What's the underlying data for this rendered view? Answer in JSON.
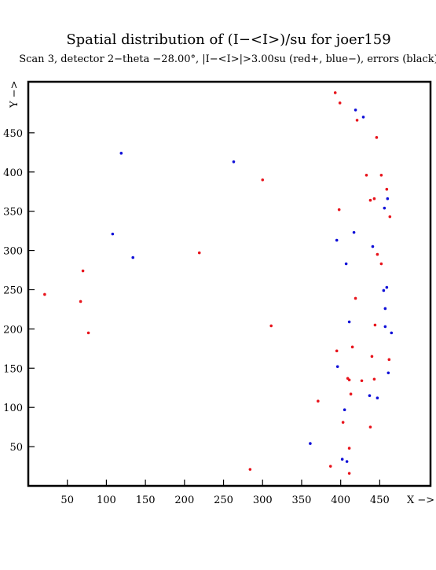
{
  "chart_data": {
    "type": "scatter",
    "title": "Spatial distribution of (I−<I>)/su for joer159",
    "subtitle": "Scan  3, detector 2−theta −28.00°, |I−<I>|>3.00su (red+, blue−), errors (black)",
    "xlabel": "X −>",
    "ylabel": "Y −>",
    "xlim": [
      0,
      515
    ],
    "ylim": [
      0,
      515
    ],
    "x_ticks": [
      50,
      100,
      150,
      200,
      250,
      300,
      350,
      400,
      450
    ],
    "y_ticks": [
      50,
      100,
      150,
      200,
      250,
      300,
      350,
      400,
      450
    ],
    "grid": false,
    "colors": {
      "positive": "#e8141c",
      "negative": "#1010d8",
      "frame": "#000000"
    },
    "series": [
      {
        "name": "red+",
        "color": "#e8141c",
        "points": [
          [
            393,
            501
          ],
          [
            399,
            488
          ],
          [
            421,
            466
          ],
          [
            446,
            444
          ],
          [
            433,
            396
          ],
          [
            452,
            396
          ],
          [
            300,
            390
          ],
          [
            459,
            378
          ],
          [
            438,
            364
          ],
          [
            443,
            366
          ],
          [
            398,
            352
          ],
          [
            463,
            343
          ],
          [
            219,
            297
          ],
          [
            447,
            295
          ],
          [
            452,
            283
          ],
          [
            70,
            274
          ],
          [
            21,
            244
          ],
          [
            419,
            239
          ],
          [
            67,
            235
          ],
          [
            311,
            204
          ],
          [
            444,
            205
          ],
          [
            77,
            195
          ],
          [
            415,
            177
          ],
          [
            395,
            172
          ],
          [
            440,
            165
          ],
          [
            462,
            161
          ],
          [
            409,
            137
          ],
          [
            411,
            135
          ],
          [
            427,
            134
          ],
          [
            443,
            136
          ],
          [
            413,
            117
          ],
          [
            371,
            108
          ],
          [
            403,
            81
          ],
          [
            438,
            75
          ],
          [
            411,
            48
          ],
          [
            387,
            25
          ],
          [
            284,
            21
          ],
          [
            411,
            16
          ]
        ]
      },
      {
        "name": "blue−",
        "color": "#1010d8",
        "points": [
          [
            419,
            479
          ],
          [
            429,
            470
          ],
          [
            119,
            424
          ],
          [
            263,
            413
          ],
          [
            460,
            366
          ],
          [
            456,
            354
          ],
          [
            108,
            321
          ],
          [
            417,
            323
          ],
          [
            395,
            313
          ],
          [
            441,
            305
          ],
          [
            134,
            291
          ],
          [
            407,
            283
          ],
          [
            459,
            253
          ],
          [
            455,
            249
          ],
          [
            457,
            226
          ],
          [
            411,
            209
          ],
          [
            457,
            203
          ],
          [
            465,
            195
          ],
          [
            396,
            152
          ],
          [
            461,
            144
          ],
          [
            437,
            115
          ],
          [
            447,
            112
          ],
          [
            405,
            97
          ],
          [
            361,
            54
          ],
          [
            402,
            34
          ],
          [
            408,
            31
          ]
        ]
      }
    ]
  }
}
